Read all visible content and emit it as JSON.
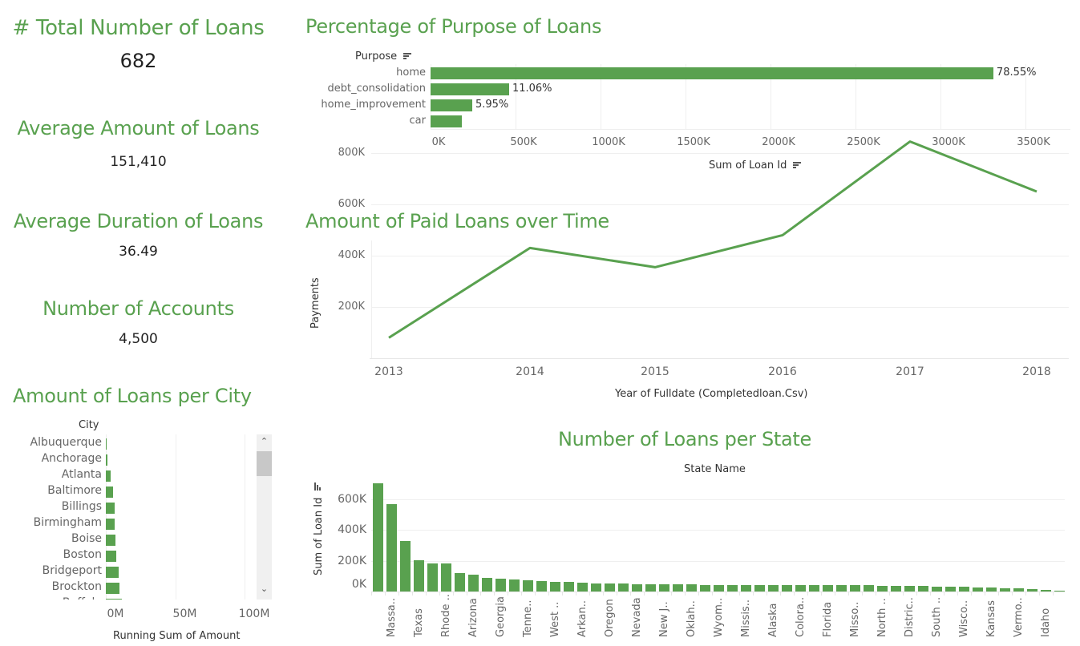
{
  "kpis": [
    {
      "title": "# Total Number of Loans",
      "value": "682"
    },
    {
      "title": "Average Amount of Loans",
      "value": "151,410"
    },
    {
      "title": "Average Duration of Loans",
      "value": "36.49"
    },
    {
      "title": "Number of Accounts",
      "value": "4,500"
    }
  ],
  "purpose_chart": {
    "title": "Percentage of Purpose of Loans",
    "row_header": "Purpose",
    "x_axis_title": "Sum of Loan Id",
    "ticks": [
      "0K",
      "500K",
      "1000K",
      "1500K",
      "2000K",
      "2500K",
      "3000K",
      "3500K"
    ]
  },
  "line_chart": {
    "title": "Amount of Paid Loans over Time",
    "y_axis_title": "Payments",
    "x_axis_title": "Year of Fulldate (Completedloan.Csv)",
    "y_ticks": [
      "800K",
      "600K",
      "400K",
      "200K"
    ],
    "x_ticks": [
      "2013",
      "2014",
      "2015",
      "2016",
      "2017",
      "2018"
    ]
  },
  "city_chart": {
    "title": "Amount of Loans per City",
    "row_header": "City",
    "x_axis_title": "Running Sum of Amount",
    "ticks": [
      "0M",
      "50M",
      "100M"
    ]
  },
  "state_chart": {
    "title": "Number of Loans per State",
    "column_header": "State Name",
    "y_axis_title": "Sum of Loan Id",
    "y_ticks": [
      "600K",
      "400K",
      "200K",
      "0K"
    ]
  },
  "colors": {
    "accent": "#59a14f",
    "gridline": "#efefef",
    "scrollbar_track": "#f0f0f0",
    "scrollbar_thumb": "#c8c8c8"
  },
  "chart_data": [
    {
      "type": "bar",
      "orientation": "horizontal",
      "title": "Percentage of Purpose of Loans",
      "categories": [
        "home",
        "debt_consolidation",
        "home_improvement",
        "car"
      ],
      "values": [
        3311000,
        462000,
        245000,
        184000
      ],
      "data_labels": [
        "78.55%",
        "11.06%",
        "5.95%",
        ""
      ],
      "xlabel": "Sum of Loan Id",
      "ylabel": "Purpose",
      "xlim": [
        0,
        3750000
      ],
      "grid": true
    },
    {
      "type": "line",
      "title": "Amount of Paid Loans over Time",
      "x": [
        2013,
        2014,
        2015,
        2016,
        2017,
        2018
      ],
      "values": [
        80000,
        430000,
        355000,
        480000,
        845000,
        650000
      ],
      "xlabel": "Year of Fulldate (Completedloan.Csv)",
      "ylabel": "Payments",
      "ylim": [
        0,
        900000
      ],
      "grid": true
    },
    {
      "type": "bar",
      "orientation": "horizontal",
      "title": "Amount of Loans per City",
      "categories": [
        "Albuquerque",
        "Anchorage",
        "Atlanta",
        "Baltimore",
        "Billings",
        "Birmingham",
        "Boise",
        "Boston",
        "Bridgeport",
        "Brockton",
        "Buffalo"
      ],
      "values": [
        0.2,
        1.2,
        3.5,
        5.2,
        6.4,
        6.4,
        7.0,
        7.5,
        9.2,
        9.8,
        11.5
      ],
      "unit": "M",
      "xlabel": "Running Sum of Amount",
      "ylabel": "City",
      "xlim": [
        0,
        110
      ],
      "grid": true
    },
    {
      "type": "bar",
      "orientation": "vertical",
      "title": "Number of Loans per State",
      "categories": [
        "",
        "Massa..",
        "",
        "Texas",
        "",
        "Rhode ..",
        "",
        "Arizona",
        "",
        "Georgia",
        "",
        "Tenne..",
        "",
        "West ..",
        "",
        "Arkan..",
        "",
        "Oregon",
        "",
        "Nevada",
        "",
        "New J..",
        "",
        "Oklah..",
        "",
        "Wyom..",
        "",
        "Missis..",
        "",
        "Alaska",
        "",
        "Colora..",
        "",
        "Florida",
        "",
        "Misso..",
        "",
        "North ..",
        "",
        "Distric..",
        "",
        "South ..",
        "",
        "Wisco..",
        "",
        "Kansas",
        "",
        "Vermo..",
        "",
        "Idaho",
        ""
      ],
      "values": [
        700000,
        567000,
        327000,
        203000,
        182000,
        182000,
        119000,
        109000,
        88000,
        83000,
        78000,
        73000,
        68000,
        64000,
        62000,
        57000,
        53000,
        53000,
        50000,
        47000,
        47000,
        47000,
        47000,
        47000,
        43000,
        43000,
        43000,
        43000,
        43000,
        43000,
        43000,
        40000,
        40000,
        40000,
        40000,
        40000,
        40000,
        38000,
        38000,
        38000,
        38000,
        31000,
        31000,
        31000,
        26000,
        26000,
        21000,
        21000,
        16000,
        10000,
        5000
      ],
      "xlabel": "State Name",
      "ylabel": "Sum of Loan Id",
      "ylim": [
        0,
        720000
      ],
      "grid": true
    }
  ]
}
